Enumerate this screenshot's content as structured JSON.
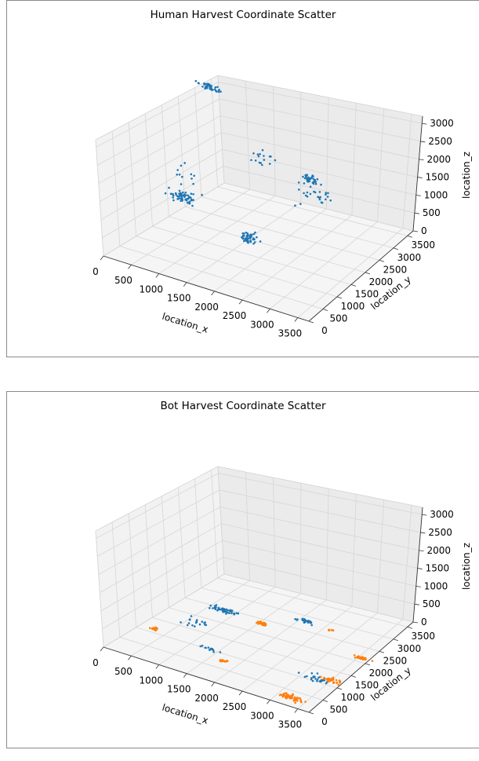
{
  "chart_data": [
    {
      "type": "scatter",
      "title": "Human Harvest Coordinate Scatter",
      "xlabel": "location_x",
      "ylabel": "location_y",
      "zlabel": "location_z",
      "xlim": [
        0,
        3700
      ],
      "ylim": [
        0,
        3700
      ],
      "zlim": [
        0,
        3200
      ],
      "xticks": [
        "0",
        "500",
        "1000",
        "1500",
        "2000",
        "2500",
        "3000",
        "3500"
      ],
      "yticks": [
        "0",
        "500",
        "1000",
        "1500",
        "2000",
        "2500",
        "3000",
        "3500"
      ],
      "zticks": [
        "0",
        "500",
        "1000",
        "1500",
        "2000",
        "2500",
        "3000"
      ],
      "grid": true,
      "colors": {
        "human": "#1f77b4"
      },
      "clusters": [
        {
          "series": "human",
          "center": [
            150,
            3250,
            2950
          ],
          "spread": [
            200,
            80,
            60
          ],
          "n": 45
        },
        {
          "series": "human",
          "center": [
            600,
            1600,
            1900
          ],
          "spread": [
            120,
            400,
            500
          ],
          "n": 12
        },
        {
          "series": "human",
          "center": [
            1700,
            2100,
            2400
          ],
          "spread": [
            250,
            180,
            200
          ],
          "n": 16
        },
        {
          "series": "human",
          "center": [
            2400,
            2500,
            1450
          ],
          "spread": [
            280,
            350,
            150
          ],
          "n": 24
        },
        {
          "series": "human",
          "center": [
            400,
            1800,
            850
          ],
          "spread": [
            200,
            150,
            120
          ],
          "n": 60
        },
        {
          "series": "human",
          "center": [
            1700,
            1600,
            450
          ],
          "spread": [
            120,
            140,
            100
          ],
          "n": 55
        },
        {
          "series": "human",
          "center": [
            3150,
            1200,
            3000
          ],
          "spread": [
            140,
            100,
            130
          ],
          "n": 40
        }
      ]
    },
    {
      "type": "scatter",
      "title": "Bot Harvest Coordinate Scatter",
      "xlabel": "location_x",
      "ylabel": "location_y",
      "zlabel": "location_z",
      "xlim": [
        0,
        3700
      ],
      "ylim": [
        0,
        3700
      ],
      "zlim": [
        0,
        3200
      ],
      "xticks": [
        "0",
        "500",
        "1000",
        "1500",
        "2000",
        "2500",
        "3000",
        "3500"
      ],
      "yticks": [
        "0",
        "500",
        "1000",
        "1500",
        "2000",
        "2500",
        "3000",
        "3500"
      ],
      "zticks": [
        "0",
        "500",
        "1000",
        "1500",
        "2000",
        "2500",
        "3000"
      ],
      "grid": true,
      "colors": {
        "human": "#1f77b4",
        "bot": "#ff7f0e"
      },
      "clusters": [
        {
          "series": "human",
          "center": [
            700,
            2500,
            0
          ],
          "spread": [
            200,
            80,
            0
          ],
          "n": 55
        },
        {
          "series": "human",
          "center": [
            1900,
            3000,
            0
          ],
          "spread": [
            180,
            60,
            0
          ],
          "n": 24
        },
        {
          "series": "human",
          "center": [
            600,
            1800,
            0
          ],
          "spread": [
            200,
            180,
            0
          ],
          "n": 18
        },
        {
          "series": "human",
          "center": [
            1300,
            1050,
            0
          ],
          "spread": [
            180,
            80,
            0
          ],
          "n": 16
        },
        {
          "series": "human",
          "center": [
            3150,
            1200,
            0
          ],
          "spread": [
            220,
            120,
            0
          ],
          "n": 26
        },
        {
          "series": "bot",
          "center": [
            1400,
            2450,
            0
          ],
          "spread": [
            100,
            60,
            0
          ],
          "n": 30
        },
        {
          "series": "bot",
          "center": [
            2350,
            2950,
            0
          ],
          "spread": [
            60,
            40,
            0
          ],
          "n": 6
        },
        {
          "series": "bot",
          "center": [
            250,
            1150,
            0
          ],
          "spread": [
            80,
            60,
            0
          ],
          "n": 14
        },
        {
          "series": "bot",
          "center": [
            1700,
            800,
            0
          ],
          "spread": [
            70,
            50,
            0
          ],
          "n": 14
        },
        {
          "series": "bot",
          "center": [
            3250,
            2350,
            0
          ],
          "spread": [
            120,
            60,
            0
          ],
          "n": 26
        },
        {
          "series": "bot",
          "center": [
            3350,
            1300,
            0
          ],
          "spread": [
            160,
            90,
            0
          ],
          "n": 34
        },
        {
          "series": "bot",
          "center": [
            3200,
            300,
            0
          ],
          "spread": [
            200,
            90,
            0
          ],
          "n": 70
        }
      ]
    }
  ]
}
